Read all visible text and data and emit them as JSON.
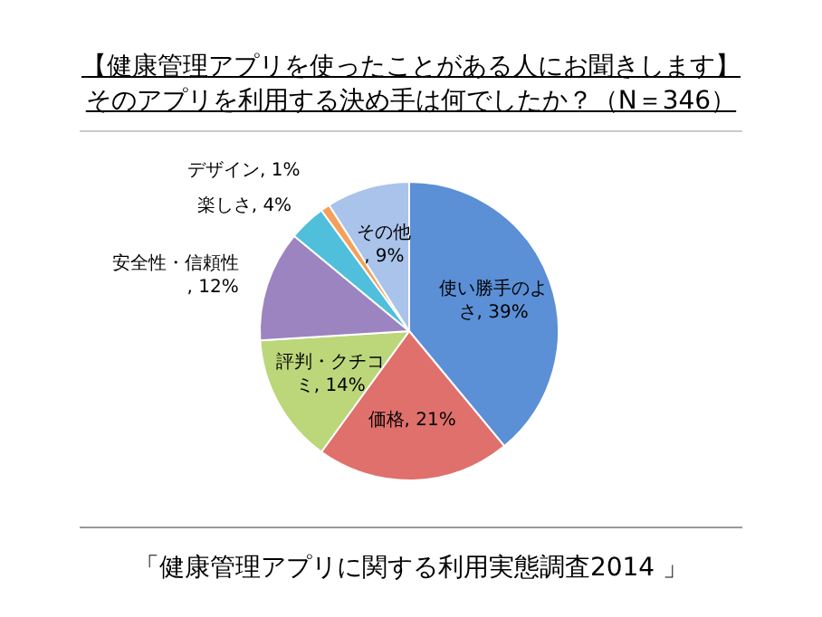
{
  "chart_data": {
    "type": "pie",
    "title": "【健康管理アプリを使ったことがある人にお聞きします】",
    "subtitle": "そのアプリを利用する決め手は何でしたか？（N＝346）",
    "categories": [
      "使い勝手のよさ",
      "価格",
      "評判・クチコミ",
      "安全性・信頼性",
      "楽しさ",
      "デザイン",
      "その他"
    ],
    "values": [
      39,
      21,
      14,
      12,
      4,
      1,
      9
    ],
    "colors": [
      "#5b8fd6",
      "#e0706c",
      "#bcd67a",
      "#9b84c0",
      "#4fbfdc",
      "#f5a05a",
      "#a9c3ea"
    ],
    "value_labels": [
      ", 39%",
      ", 21%",
      ", 14%",
      ", 12%",
      ", 4%",
      ", 1%",
      ", 9%"
    ],
    "annotations": [
      "「健康管理アプリに関する利用実態調査2014 」"
    ]
  }
}
